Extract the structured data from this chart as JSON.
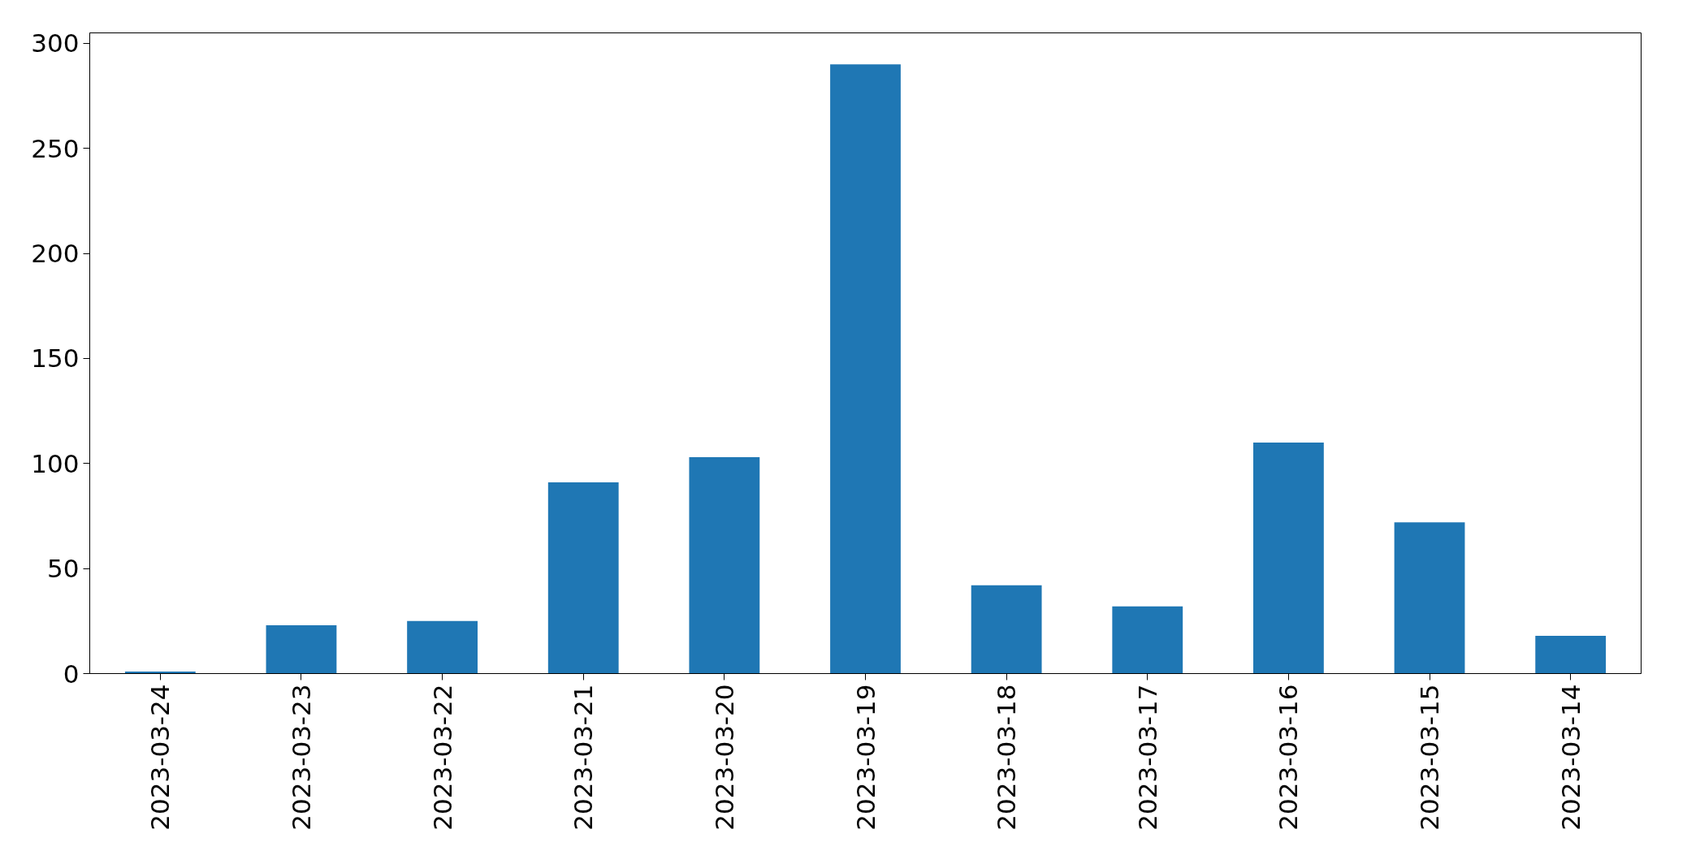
{
  "chart_data": {
    "type": "bar",
    "categories": [
      "2023-03-24",
      "2023-03-23",
      "2023-03-22",
      "2023-03-21",
      "2023-03-20",
      "2023-03-19",
      "2023-03-18",
      "2023-03-17",
      "2023-03-16",
      "2023-03-15",
      "2023-03-14"
    ],
    "values": [
      1,
      23,
      25,
      91,
      103,
      290,
      42,
      32,
      110,
      72,
      18
    ],
    "color": "#1f77b4",
    "ylim": [
      0,
      305
    ],
    "yticks": [
      0,
      50,
      100,
      150,
      200,
      250,
      300
    ],
    "grid": false
  }
}
